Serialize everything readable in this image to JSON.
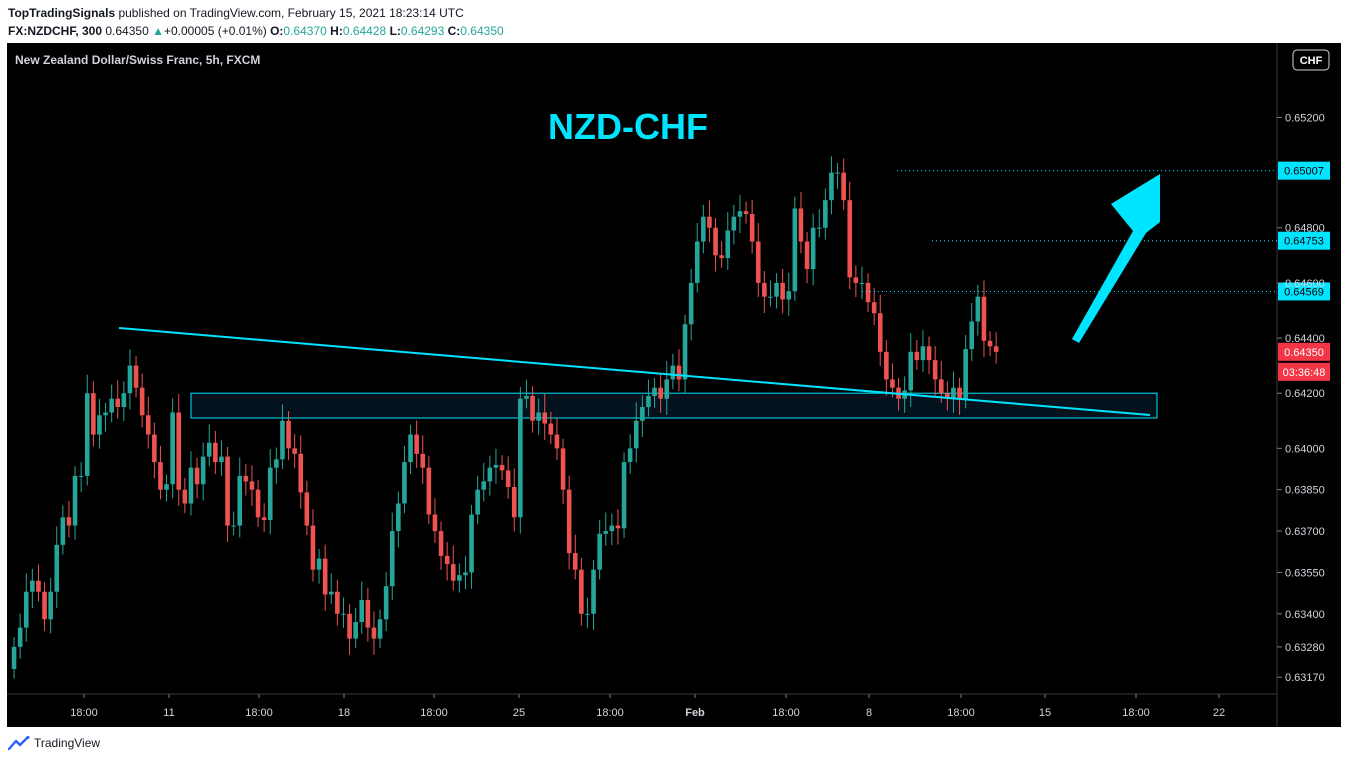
{
  "header": {
    "author": "TopTradingSignals",
    "published": " published on TradingView.com, February 15, 2021 18:23:14 UTC",
    "symbol": "FX:NZDCHF, 300",
    "last": "0.64350",
    "change": "+0.00005 (+0.01%)",
    "o_label": "O:",
    "o": "0.64370",
    "h_label": "H:",
    "h": "0.64428",
    "l_label": "L:",
    "l": "0.64293",
    "c_label": "C:",
    "c": "0.64350"
  },
  "chart": {
    "legend_title": "New Zealand Dollar/Swiss Franc, 5h, FXCM",
    "headline": "NZD-CHF",
    "currency_button": "CHF",
    "countdown": "03:36:48",
    "colors": {
      "bg": "#000000",
      "up": "#26a69a",
      "down": "#ef5350",
      "accent": "#00e5ff",
      "price_label": "#f23645"
    }
  },
  "footer": {
    "brand": "TradingView"
  },
  "chart_data": {
    "type": "candlestick",
    "title": "New Zealand Dollar/Swiss Franc, 5h, FXCM",
    "annotation": "NZD-CHF",
    "ylim": [
      0.6312,
      0.6547
    ],
    "y_ticks": [
      "0.65200",
      "0.64800",
      "0.64600",
      "0.64400",
      "0.64200",
      "0.64000",
      "0.63850",
      "0.63700",
      "0.63550",
      "0.63400",
      "0.63280",
      "0.63170"
    ],
    "x_ticks": [
      "18:00",
      "11",
      "18:00",
      "18",
      "18:00",
      "25",
      "18:00",
      "Feb",
      "18:00",
      "8",
      "18:00",
      "15",
      "18:00",
      "22"
    ],
    "price_levels": [
      "0.65007",
      "0.64753",
      "0.64569"
    ],
    "last_price": "0.64350",
    "trendline": {
      "from": 0.6442,
      "to": 0.641
    },
    "zone": [
      0.6411,
      0.642
    ],
    "close": [
      0.6328,
      0.6335,
      0.6348,
      0.6352,
      0.6348,
      0.6338,
      0.6348,
      0.6365,
      0.6375,
      0.6372,
      0.639,
      0.639,
      0.642,
      0.6405,
      0.6412,
      0.6413,
      0.6418,
      0.6415,
      0.642,
      0.643,
      0.6422,
      0.6412,
      0.6405,
      0.6395,
      0.6385,
      0.6387,
      0.6413,
      0.6385,
      0.638,
      0.6393,
      0.6387,
      0.6397,
      0.6402,
      0.6395,
      0.6397,
      0.6372,
      0.6372,
      0.639,
      0.6388,
      0.6385,
      0.6375,
      0.6374,
      0.6393,
      0.6396,
      0.641,
      0.64,
      0.6398,
      0.6384,
      0.6372,
      0.6356,
      0.636,
      0.6347,
      0.6348,
      0.634,
      0.634,
      0.6331,
      0.6337,
      0.6345,
      0.6335,
      0.6331,
      0.6338,
      0.635,
      0.637,
      0.638,
      0.6395,
      0.6405,
      0.6398,
      0.6393,
      0.6376,
      0.637,
      0.6361,
      0.6358,
      0.6352,
      0.6354,
      0.6355,
      0.6376,
      0.6385,
      0.6388,
      0.6393,
      0.6394,
      0.6392,
      0.6386,
      0.6375,
      0.6418,
      0.6419,
      0.641,
      0.6413,
      0.6409,
      0.6405,
      0.64,
      0.6385,
      0.6362,
      0.6356,
      0.634,
      0.634,
      0.6356,
      0.6369,
      0.637,
      0.6372,
      0.6371,
      0.6395,
      0.64,
      0.641,
      0.6415,
      0.6419,
      0.6422,
      0.6418,
      0.6425,
      0.643,
      0.6425,
      0.6445,
      0.646,
      0.6475,
      0.6484,
      0.648,
      0.647,
      0.6469,
      0.6479,
      0.6484,
      0.6486,
      0.6485,
      0.6475,
      0.646,
      0.6455,
      0.6455,
      0.646,
      0.6454,
      0.6457,
      0.6487,
      0.6475,
      0.6465,
      0.648,
      0.648,
      0.649,
      0.65,
      0.65,
      0.649,
      0.6462,
      0.646,
      0.646,
      0.6453,
      0.6449,
      0.6435,
      0.6425,
      0.6422,
      0.6418,
      0.6421,
      0.6435,
      0.6432,
      0.6437,
      0.6432,
      0.6425,
      0.642,
      0.6418,
      0.6422,
      0.6418,
      0.6436,
      0.6446,
      0.6455,
      0.6439,
      0.6437,
      0.6435
    ]
  }
}
